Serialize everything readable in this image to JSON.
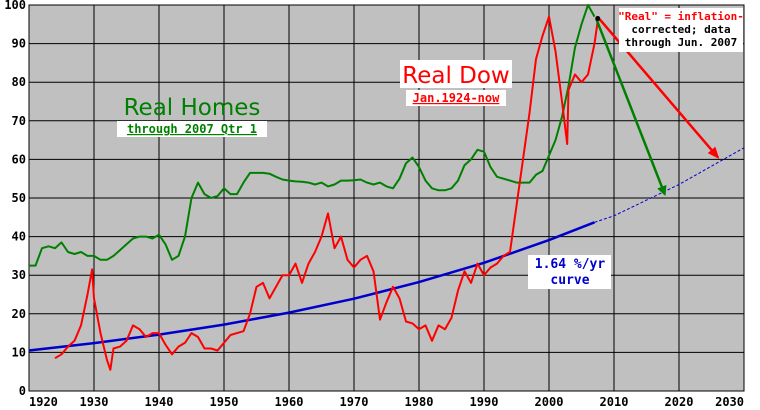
{
  "chart_data": {
    "type": "line",
    "title": "",
    "xlabel": "",
    "ylabel": "",
    "xlim": [
      1920,
      2030
    ],
    "ylim": [
      0,
      100
    ],
    "xticks": [
      1920,
      1930,
      1940,
      1950,
      1960,
      1970,
      1980,
      1990,
      2000,
      2010,
      2020,
      2030
    ],
    "yticks": [
      0,
      10,
      20,
      30,
      40,
      50,
      60,
      70,
      80,
      90,
      100
    ],
    "grid": true,
    "background": "#c0c0c0",
    "colors": {
      "homes": "#008000",
      "dow": "#ff0000",
      "trend": "#0000cc",
      "arrow_homes": "#008000",
      "arrow_dow": "#ff0000",
      "note_text": "#ff0000"
    },
    "series": [
      {
        "id": "homes",
        "x": [
          1920,
          1921,
          1922,
          1923,
          1924,
          1925,
          1926,
          1927,
          1928,
          1929,
          1930,
          1931,
          1932,
          1933,
          1934,
          1935,
          1936,
          1937,
          1938,
          1939,
          1940,
          1941,
          1942,
          1943,
          1944,
          1945,
          1946,
          1947,
          1948,
          1949,
          1950,
          1951,
          1952,
          1953,
          1954,
          1955,
          1956,
          1957,
          1958,
          1959,
          1960,
          1961,
          1962,
          1963,
          1964,
          1965,
          1966,
          1967,
          1968,
          1969,
          1970,
          1971,
          1972,
          1973,
          1974,
          1975,
          1976,
          1977,
          1978,
          1979,
          1980,
          1981,
          1982,
          1983,
          1984,
          1985,
          1986,
          1987,
          1988,
          1989,
          1990,
          1991,
          1992,
          1993,
          1994,
          1995,
          1996,
          1997,
          1998,
          1999,
          2000,
          2001,
          2002,
          2003,
          2004,
          2005,
          2006,
          2007
        ],
        "y": [
          32.5,
          32.5,
          37,
          37.5,
          37,
          38.5,
          36,
          35.5,
          36,
          35,
          35,
          34,
          34,
          35,
          36.5,
          38,
          39.5,
          40,
          40,
          39.5,
          40.5,
          38,
          34,
          35,
          40,
          50,
          54,
          51,
          50,
          50.5,
          52.5,
          51,
          51,
          54,
          56.5,
          56.5,
          56.5,
          56.3,
          55.5,
          54.8,
          54.5,
          54.3,
          54.2,
          54,
          53.5,
          54,
          53,
          53.5,
          54.5,
          54.5,
          54.6,
          54.8,
          54,
          53.5,
          54,
          53,
          52.5,
          55,
          59,
          60.5,
          58,
          54.5,
          52.5,
          52,
          52,
          52.5,
          54.5,
          58.5,
          60,
          62.5,
          62,
          58,
          55.5,
          55,
          54.5,
          54,
          54,
          54,
          56,
          57,
          61,
          65,
          71,
          79,
          89,
          95,
          100,
          97
        ]
      },
      {
        "id": "dow",
        "x": [
          1924,
          1925,
          1926,
          1927,
          1928,
          1929,
          1929.7,
          1930,
          1931,
          1932,
          1932.5,
          1933,
          1934,
          1935,
          1936,
          1937,
          1938,
          1939,
          1940,
          1941,
          1942,
          1943,
          1944,
          1945,
          1946,
          1947,
          1948,
          1949,
          1950,
          1951,
          1952,
          1953,
          1954,
          1955,
          1956,
          1957,
          1958,
          1959,
          1960,
          1961,
          1962,
          1963,
          1964,
          1965,
          1966,
          1967,
          1968,
          1969,
          1970,
          1971,
          1972,
          1973,
          1974,
          1975,
          1976,
          1977,
          1978,
          1979,
          1980,
          1981,
          1982,
          1983,
          1984,
          1985,
          1986,
          1987,
          1988,
          1989,
          1990,
          1991,
          1992,
          1993,
          1994,
          1995,
          1996,
          1997,
          1998,
          1999,
          2000,
          2001,
          2002,
          2002.8,
          2003,
          2004,
          2005,
          2006,
          2007,
          2007.5
        ],
        "y": [
          8.5,
          9.5,
          11.5,
          13,
          17,
          25,
          31.5,
          24,
          15,
          8,
          5.5,
          11,
          11.5,
          13,
          17,
          16,
          14,
          15,
          15,
          12,
          9.5,
          11.5,
          12.5,
          15,
          14,
          11,
          11,
          10.5,
          12.5,
          14.5,
          15,
          15.5,
          20,
          27,
          28,
          24,
          27,
          30,
          30,
          33,
          28,
          33,
          36,
          40,
          46,
          37,
          40,
          34,
          32,
          34,
          35,
          31,
          18.5,
          23,
          27,
          24,
          18,
          17.5,
          16,
          17,
          13,
          17,
          16,
          19,
          26,
          31,
          28,
          33,
          30,
          32,
          33,
          35,
          36,
          48,
          60,
          72,
          86,
          92,
          97,
          88,
          75,
          64,
          78,
          82,
          80,
          82,
          90,
          96
        ]
      },
      {
        "id": "trend",
        "name": "1.64 %/yr curve",
        "x": [
          1920,
          1930,
          1940,
          1950,
          1960,
          1970,
          1980,
          1990,
          2000,
          2007,
          2010,
          2020,
          2030
        ],
        "y": [
          10.5,
          12.4,
          14.6,
          17.2,
          20.3,
          23.9,
          28.2,
          33.2,
          39.1,
          43.7,
          45.4,
          53.5,
          63.0
        ]
      }
    ],
    "projections": [
      {
        "id": "homes",
        "from": [
          2007.3,
          96.3
        ],
        "to": [
          2017.8,
          51
        ]
      },
      {
        "id": "dow",
        "from": [
          2007.8,
          96.3
        ],
        "to": [
          2026,
          60.5
        ]
      }
    ],
    "labels": {
      "real_homes": "Real Homes",
      "real_homes_sub": "through 2007 Qtr 1",
      "real_dow": "Real Dow",
      "real_dow_sub": "Jan.1924-now",
      "curve_line1": "1.64 %/yr",
      "curve_line2": "curve",
      "note_line1": "\"Real\" = inflation-",
      "note_line2": "corrected; data",
      "note_line3": "through Jun. 2007"
    }
  }
}
